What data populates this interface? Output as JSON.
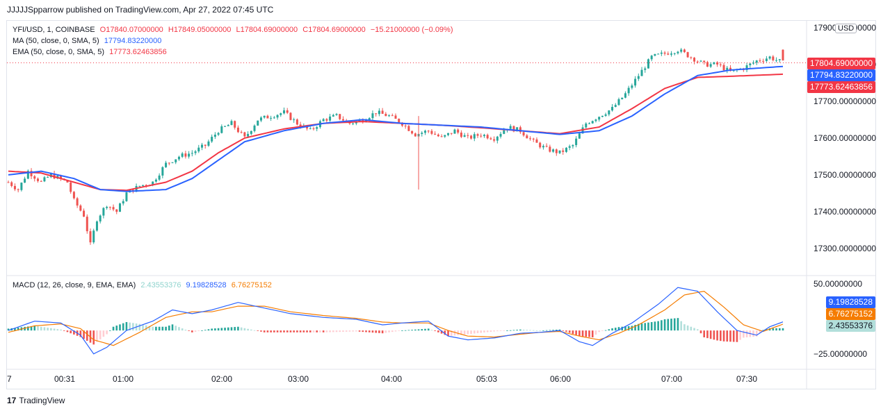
{
  "header": {
    "publisher_line": "JJJJJSpparrow published on TradingView.com, Apr 27, 2022 07:45 UTC"
  },
  "legend": {
    "symbol": "YFI/USD, 1, COINBASE",
    "open": "O17840.07000000",
    "high": "H17849.05000000",
    "low": "L17804.69000000",
    "close": "C17804.69000000",
    "change": "−15.21000000 (−0.09%)",
    "ma_label": "MA (50, close, 0, SMA, 5)",
    "ma_value": "17794.83220000",
    "ema_label": "EMA (50, close, 0, SMA, 5)",
    "ema_value": "17773.62463856",
    "macd_label": "MACD (12, 26, close, 9, EMA, EMA)",
    "macd_hist": "2.43553376",
    "macd_line": "9.19828528",
    "macd_signal": "6.76275152"
  },
  "currency": "USD",
  "price_tags": {
    "last": "17804.69000000",
    "ma": "17794.83220000",
    "ema": "17773.62463856",
    "macd": "9.19828528",
    "signal": "6.76275152",
    "hist": "2.43553376"
  },
  "footer": {
    "brand": "TradingView"
  },
  "colors": {
    "up": "#26a69a",
    "down": "#ef5350",
    "ma": "#2962ff",
    "ema": "#f23645",
    "macd": "#2962ff",
    "signal": "#f57c00",
    "hist_up_strong": "#26a69a",
    "hist_up_weak": "#b2dfdb",
    "hist_down_strong": "#ef5350",
    "hist_down_weak": "#ffcdd2"
  },
  "chart_data": [
    {
      "type": "candlestick",
      "title": "YFI/USD, 1, COINBASE",
      "ylim": [
        17230,
        17915
      ],
      "y_ticks": [
        17900,
        17800,
        17700,
        17600,
        17500,
        17400,
        17300
      ],
      "y_tick_labels": [
        "17900.00000000",
        "17800.00000000",
        "17700.00000000",
        "17600.00000000",
        "17500.00000000",
        "17400.00000000",
        "17300.00000000"
      ],
      "x_tick_labels": [
        "7",
        "00:31",
        "01:00",
        "02:00",
        "03:00",
        "04:00",
        "05:03",
        "06:00",
        "07:00",
        "07:30"
      ],
      "last_price": 17804.69,
      "close_anchors": [
        [
          0,
          17480
        ],
        [
          3,
          17460
        ],
        [
          6,
          17510
        ],
        [
          10,
          17480
        ],
        [
          13,
          17500
        ],
        [
          18,
          17480
        ],
        [
          20,
          17430
        ],
        [
          23,
          17390
        ],
        [
          25,
          17310
        ],
        [
          27,
          17380
        ],
        [
          30,
          17420
        ],
        [
          33,
          17400
        ],
        [
          36,
          17450
        ],
        [
          40,
          17470
        ],
        [
          44,
          17480
        ],
        [
          48,
          17530
        ],
        [
          52,
          17550
        ],
        [
          56,
          17560
        ],
        [
          60,
          17580
        ],
        [
          64,
          17620
        ],
        [
          68,
          17640
        ],
        [
          72,
          17600
        ],
        [
          76,
          17650
        ],
        [
          80,
          17660
        ],
        [
          84,
          17670
        ],
        [
          88,
          17640
        ],
        [
          92,
          17620
        ],
        [
          96,
          17650
        ],
        [
          100,
          17660
        ],
        [
          104,
          17640
        ],
        [
          108,
          17650
        ],
        [
          112,
          17670
        ],
        [
          116,
          17660
        ],
        [
          120,
          17640
        ],
        [
          124,
          17610
        ],
        [
          128,
          17620
        ],
        [
          132,
          17600
        ],
        [
          136,
          17620
        ],
        [
          140,
          17600
        ],
        [
          144,
          17610
        ],
        [
          148,
          17600
        ],
        [
          152,
          17630
        ],
        [
          156,
          17620
        ],
        [
          160,
          17590
        ],
        [
          164,
          17570
        ],
        [
          168,
          17560
        ],
        [
          172,
          17580
        ],
        [
          176,
          17640
        ],
        [
          180,
          17660
        ],
        [
          184,
          17680
        ],
        [
          188,
          17720
        ],
        [
          192,
          17770
        ],
        [
          196,
          17820
        ],
        [
          200,
          17830
        ],
        [
          204,
          17840
        ],
        [
          208,
          17820
        ],
        [
          212,
          17800
        ],
        [
          216,
          17800
        ],
        [
          220,
          17780
        ],
        [
          224,
          17790
        ],
        [
          228,
          17810
        ],
        [
          232,
          17820
        ],
        [
          236,
          17804.69
        ]
      ],
      "ma": {
        "name": "MA (50, close, 0, SMA, 5)",
        "last": 17794.8322,
        "anchors": [
          [
            0,
            17500
          ],
          [
            10,
            17510
          ],
          [
            20,
            17490
          ],
          [
            28,
            17460
          ],
          [
            36,
            17455
          ],
          [
            48,
            17460
          ],
          [
            56,
            17490
          ],
          [
            64,
            17540
          ],
          [
            72,
            17590
          ],
          [
            84,
            17620
          ],
          [
            96,
            17640
          ],
          [
            108,
            17650
          ],
          [
            120,
            17640
          ],
          [
            132,
            17635
          ],
          [
            144,
            17630
          ],
          [
            156,
            17620
          ],
          [
            168,
            17610
          ],
          [
            180,
            17620
          ],
          [
            190,
            17660
          ],
          [
            200,
            17720
          ],
          [
            210,
            17770
          ],
          [
            220,
            17785
          ],
          [
            236,
            17794.83
          ]
        ]
      },
      "ema": {
        "name": "EMA (50, close, 0, SMA, 5)",
        "last": 17773.62463856,
        "anchors": [
          [
            0,
            17510
          ],
          [
            10,
            17505
          ],
          [
            20,
            17480
          ],
          [
            28,
            17460
          ],
          [
            36,
            17458
          ],
          [
            48,
            17480
          ],
          [
            56,
            17510
          ],
          [
            64,
            17560
          ],
          [
            72,
            17600
          ],
          [
            84,
            17625
          ],
          [
            96,
            17640
          ],
          [
            108,
            17645
          ],
          [
            120,
            17640
          ],
          [
            132,
            17635
          ],
          [
            144,
            17628
          ],
          [
            156,
            17620
          ],
          [
            168,
            17612
          ],
          [
            180,
            17630
          ],
          [
            190,
            17680
          ],
          [
            200,
            17735
          ],
          [
            210,
            17765
          ],
          [
            220,
            17768
          ],
          [
            236,
            17773.62
          ]
        ]
      }
    },
    {
      "type": "macd",
      "title": "MACD (12, 26, close, 9, EMA, EMA)",
      "ylim": [
        -40,
        58
      ],
      "y_ticks": [
        50,
        -25
      ],
      "y_tick_labels": [
        "50.00000000",
        "−25.00000000"
      ],
      "macd_anchors": [
        [
          0,
          0
        ],
        [
          8,
          10
        ],
        [
          16,
          8
        ],
        [
          22,
          -5
        ],
        [
          26,
          -25
        ],
        [
          30,
          -18
        ],
        [
          36,
          0
        ],
        [
          44,
          10
        ],
        [
          50,
          22
        ],
        [
          56,
          18
        ],
        [
          62,
          22
        ],
        [
          70,
          30
        ],
        [
          78,
          24
        ],
        [
          86,
          18
        ],
        [
          96,
          14
        ],
        [
          106,
          12
        ],
        [
          114,
          6
        ],
        [
          120,
          8
        ],
        [
          128,
          10
        ],
        [
          134,
          -6
        ],
        [
          140,
          -10
        ],
        [
          148,
          -8
        ],
        [
          156,
          -3
        ],
        [
          162,
          -2
        ],
        [
          168,
          0
        ],
        [
          174,
          -12
        ],
        [
          178,
          -16
        ],
        [
          184,
          -3
        ],
        [
          190,
          8
        ],
        [
          198,
          28
        ],
        [
          204,
          46
        ],
        [
          210,
          42
        ],
        [
          216,
          20
        ],
        [
          222,
          0
        ],
        [
          228,
          -5
        ],
        [
          232,
          4
        ],
        [
          236,
          9.198
        ]
      ],
      "signal_anchors": [
        [
          0,
          -2
        ],
        [
          8,
          5
        ],
        [
          16,
          7
        ],
        [
          22,
          2
        ],
        [
          26,
          -10
        ],
        [
          32,
          -16
        ],
        [
          40,
          -2
        ],
        [
          48,
          14
        ],
        [
          56,
          20
        ],
        [
          62,
          20
        ],
        [
          70,
          26
        ],
        [
          78,
          26
        ],
        [
          86,
          20
        ],
        [
          96,
          16
        ],
        [
          106,
          13
        ],
        [
          114,
          9
        ],
        [
          120,
          8
        ],
        [
          128,
          8
        ],
        [
          134,
          0
        ],
        [
          140,
          -6
        ],
        [
          148,
          -7
        ],
        [
          156,
          -4
        ],
        [
          162,
          -2
        ],
        [
          168,
          -1
        ],
        [
          174,
          -6
        ],
        [
          180,
          -10
        ],
        [
          186,
          -3
        ],
        [
          192,
          6
        ],
        [
          200,
          22
        ],
        [
          206,
          38
        ],
        [
          212,
          42
        ],
        [
          218,
          25
        ],
        [
          224,
          6
        ],
        [
          230,
          -1
        ],
        [
          236,
          6.763
        ]
      ],
      "hist_last": 2.43553376
    }
  ]
}
